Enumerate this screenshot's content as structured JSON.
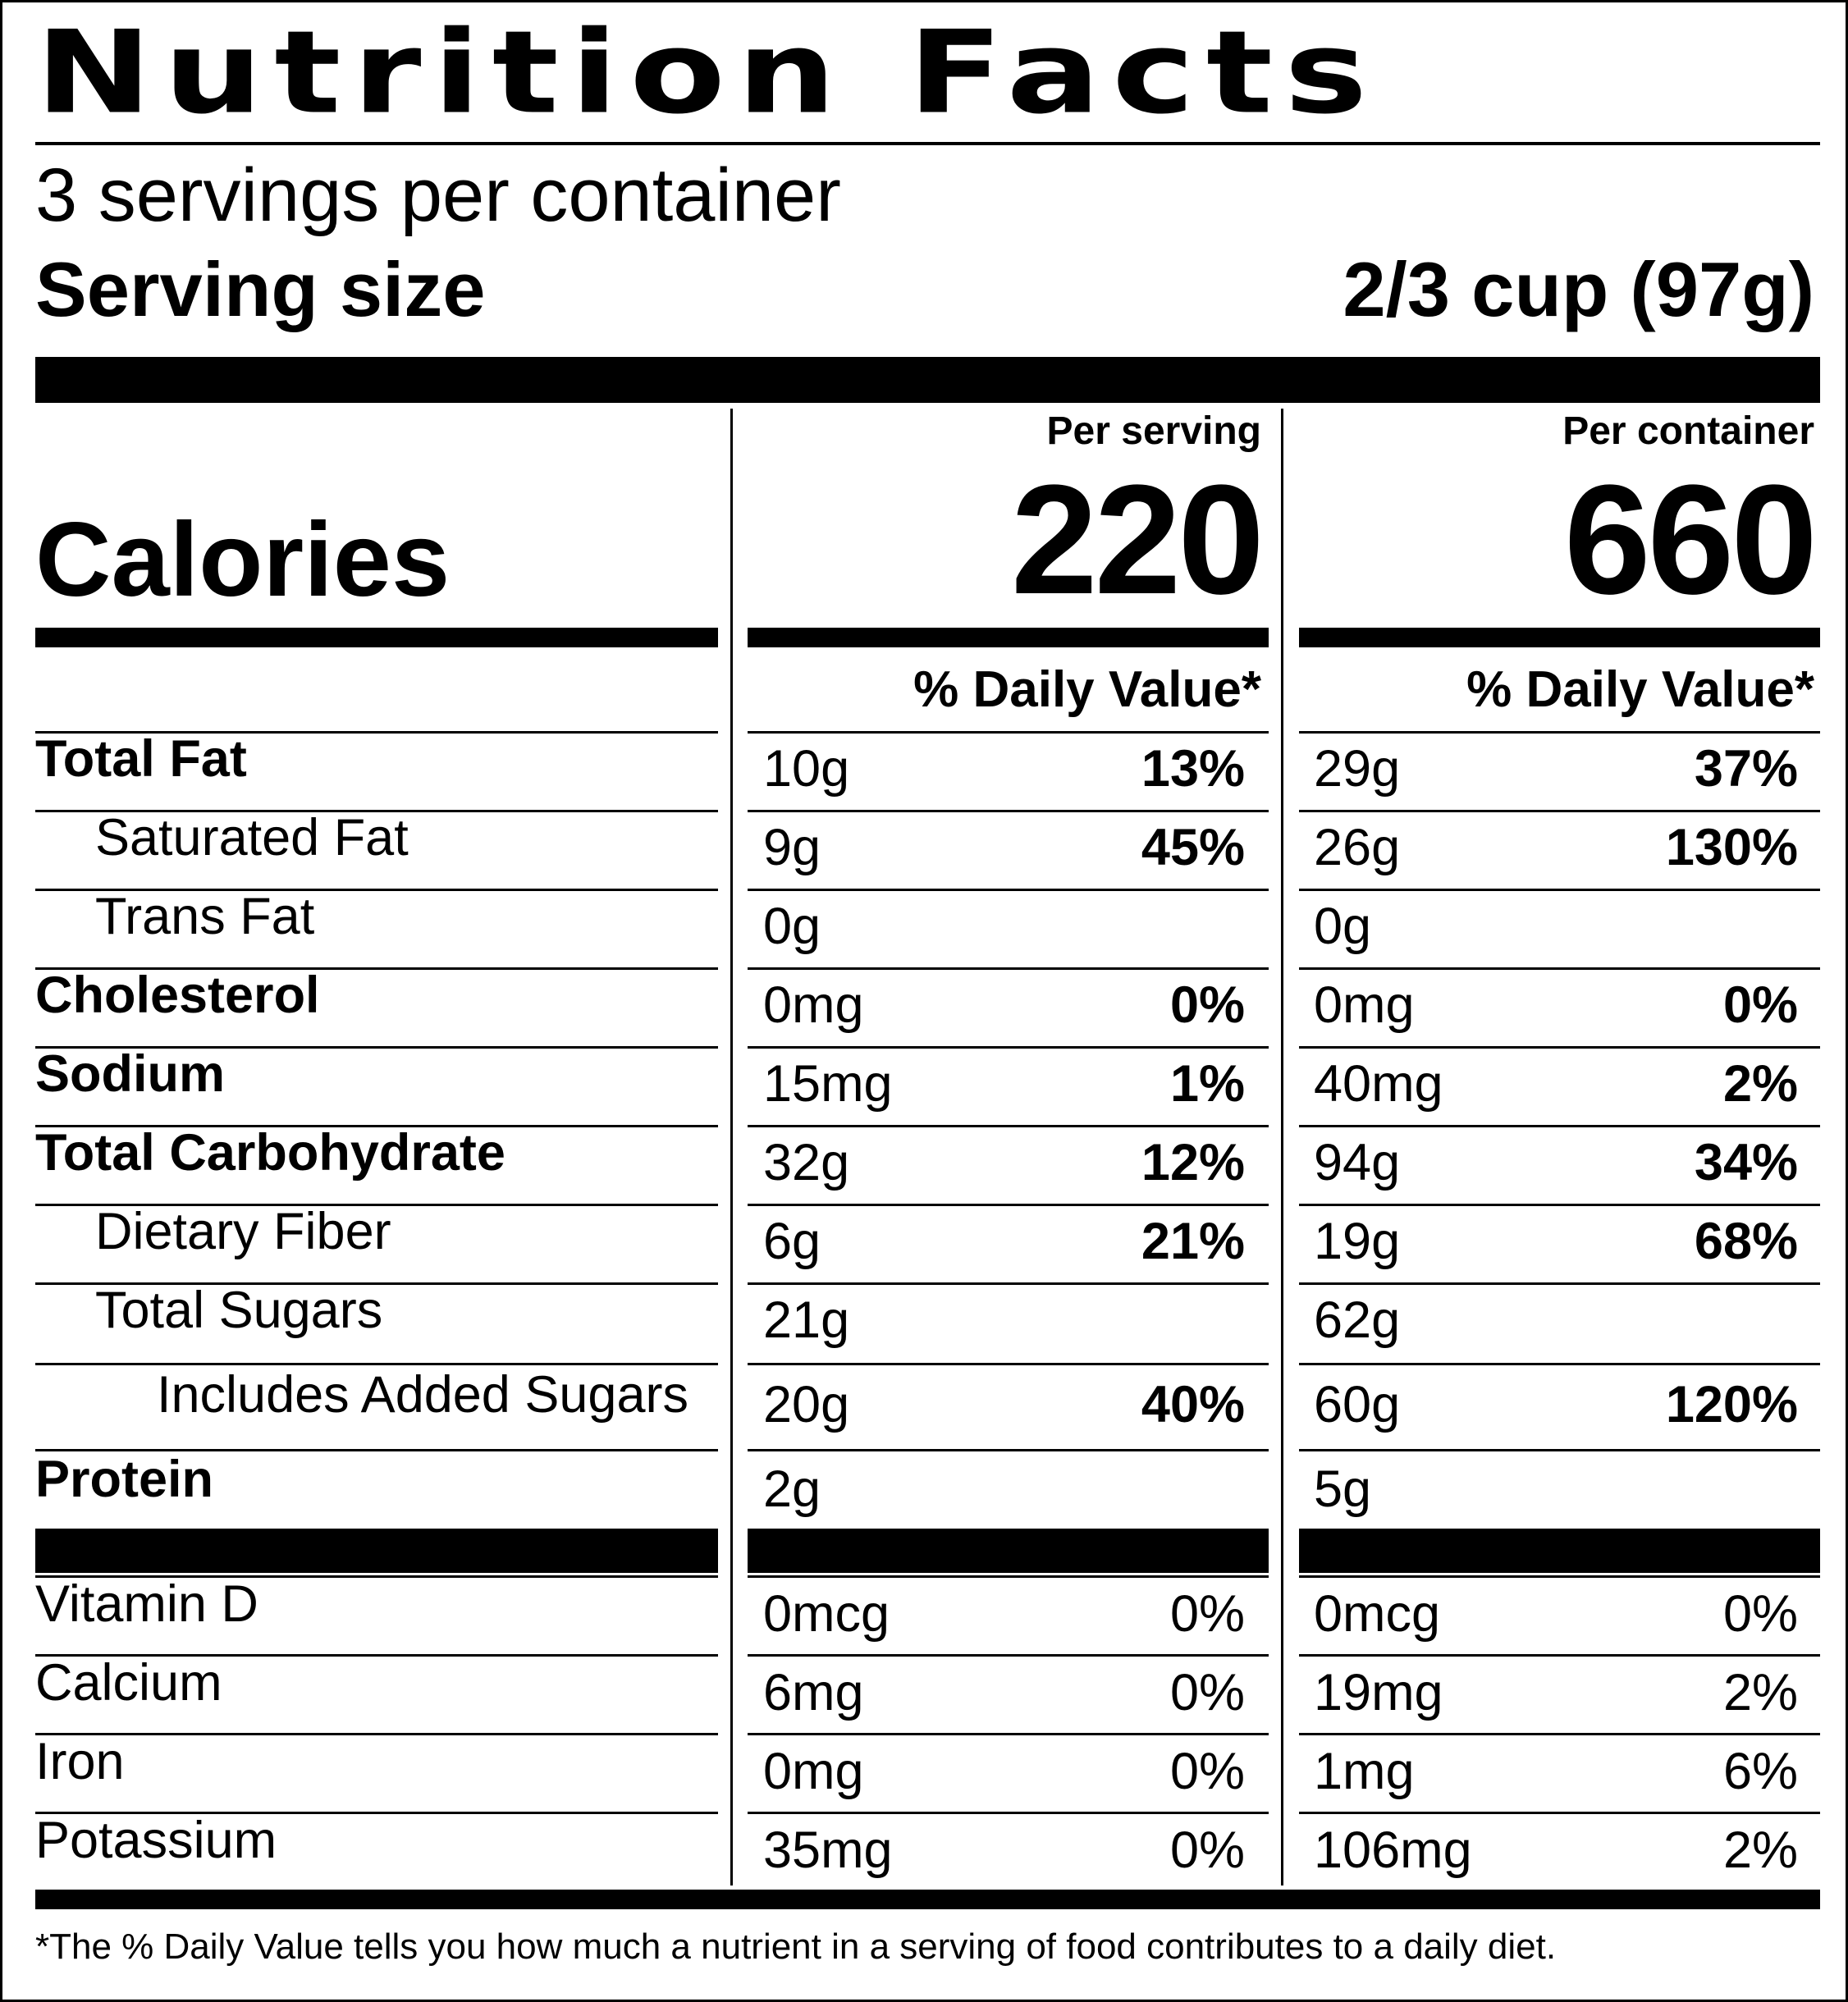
{
  "title": "Nutrition Facts",
  "servings_per_container": "3 servings per container",
  "serving_size_label": "Serving size",
  "serving_size_value": "2/3 cup (97g)",
  "per_serving_label": "Per serving",
  "per_container_label": "Per container",
  "calories_label": "Calories",
  "calories_per_serving": "220",
  "calories_per_container": "660",
  "daily_value_header": "% Daily Value*",
  "nutrients": [
    {
      "name": "Total Fat",
      "serving_amount": "10g",
      "serving_dv": "13%",
      "container_amount": "29g",
      "container_dv": "37%"
    },
    {
      "name": "Saturated Fat",
      "serving_amount": "9g",
      "serving_dv": "45%",
      "container_amount": "26g",
      "container_dv": "130%"
    },
    {
      "name": "Trans Fat",
      "serving_amount": "0g",
      "serving_dv": "",
      "container_amount": "0g",
      "container_dv": ""
    },
    {
      "name": "Cholesterol",
      "serving_amount": "0mg",
      "serving_dv": "0%",
      "container_amount": "0mg",
      "container_dv": "0%"
    },
    {
      "name": "Sodium",
      "serving_amount": "15mg",
      "serving_dv": "1%",
      "container_amount": "40mg",
      "container_dv": "2%"
    },
    {
      "name": "Total Carbohydrate",
      "serving_amount": "32g",
      "serving_dv": "12%",
      "container_amount": "94g",
      "container_dv": "34%"
    },
    {
      "name": "Dietary Fiber",
      "serving_amount": "6g",
      "serving_dv": "21%",
      "container_amount": "19g",
      "container_dv": "68%"
    },
    {
      "name": "Total Sugars",
      "serving_amount": "21g",
      "serving_dv": "",
      "container_amount": "62g",
      "container_dv": ""
    },
    {
      "name": "Includes Added Sugars",
      "serving_amount": "20g",
      "serving_dv": "40%",
      "container_amount": "60g",
      "container_dv": "120%"
    },
    {
      "name": "Protein",
      "serving_amount": "2g",
      "serving_dv": "",
      "container_amount": "5g",
      "container_dv": ""
    }
  ],
  "vitamins": [
    {
      "name": "Vitamin D",
      "serving_amount": "0mcg",
      "serving_dv": "0%",
      "container_amount": "0mcg",
      "container_dv": "0%"
    },
    {
      "name": "Calcium",
      "serving_amount": "6mg",
      "serving_dv": "0%",
      "container_amount": "19mg",
      "container_dv": "2%"
    },
    {
      "name": "Iron",
      "serving_amount": "0mg",
      "serving_dv": "0%",
      "container_amount": "1mg",
      "container_dv": "6%"
    },
    {
      "name": "Potassium",
      "serving_amount": "35mg",
      "serving_dv": "0%",
      "container_amount": "106mg",
      "container_dv": "2%"
    }
  ],
  "footnote": "*The % Daily Value tells you how much a nutrient in a serving of food contributes to a daily diet."
}
